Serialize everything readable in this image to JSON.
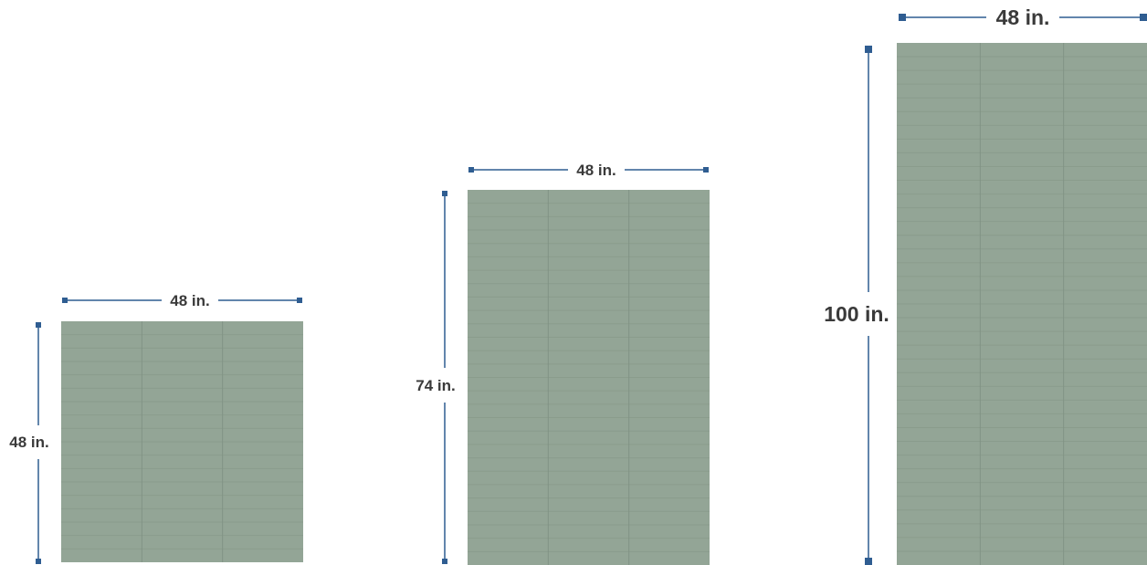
{
  "colors": {
    "panel_fill": "#93a596",
    "panel_line_horizontal": "#8a9c8c",
    "panel_line_vertical": "#819385",
    "dimension_line": "#2f5d91",
    "label_text": "#3a3a3a"
  },
  "panels": [
    {
      "name": "small",
      "width_label": "48 in.",
      "height_label": "48 in.",
      "width_in": 48,
      "height_in": 48,
      "columns": 3,
      "rows": 18
    },
    {
      "name": "medium",
      "width_label": "48 in.",
      "height_label": "74 in.",
      "width_in": 48,
      "height_in": 74,
      "columns": 3,
      "rows": 28
    },
    {
      "name": "large",
      "width_label": "48 in.",
      "height_label": "100 in.",
      "width_in": 48,
      "height_in": 100,
      "columns": 3,
      "rows": 38
    }
  ]
}
